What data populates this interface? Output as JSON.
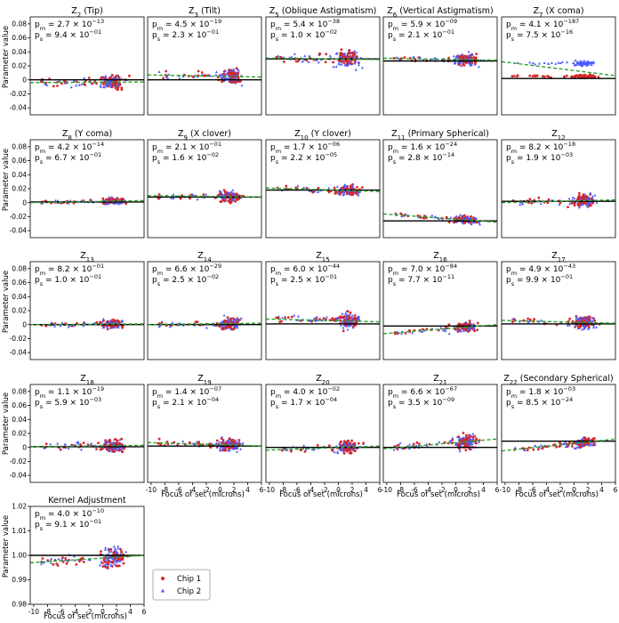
{
  "figure": {
    "ylabel": "Parameter value",
    "xlabel": "Focus of set (microns)",
    "legend": [
      {
        "label": "Chip 1",
        "color": "#d62728",
        "marker": "circle"
      },
      {
        "label": "Chip 2",
        "color": "#4b5cff",
        "marker": "triangle"
      }
    ],
    "colors": {
      "chip1": "#d62728",
      "chip2": "#4b5cff",
      "fit": "#2ca02c",
      "baseline": "#000000"
    },
    "standard_xticks": [
      "-10",
      "-8",
      "-6",
      "-4",
      "-2",
      "0",
      "2",
      "4",
      "6"
    ],
    "standard_yticks": [
      "-0.04",
      "-0.02",
      "0",
      "0.02",
      "0.04",
      "0.06",
      "0.08"
    ],
    "kernel_yticks": [
      "0.98",
      "0.99",
      "1.00",
      "1.01",
      "1.02"
    ]
  },
  "chart_data": [
    {
      "type": "scatter",
      "title_base": "Z",
      "title_sub": "2",
      "title_rest": " (Tip)",
      "pm_mant": "2.7",
      "pm_exp": "−13",
      "ps_mant": "9.4",
      "ps_exp": "−01",
      "xlim": [
        -10.5,
        6
      ],
      "ylim": [
        -0.05,
        0.09
      ],
      "baseline": 0,
      "fit": [
        -0.004,
        -0.003
      ],
      "center": 0.0,
      "spread": 0.01
    },
    {
      "type": "scatter",
      "title_base": "Z",
      "title_sub": "3",
      "title_rest": " (Tilt)",
      "pm_mant": "4.5",
      "pm_exp": "−19",
      "ps_mant": "2.3",
      "ps_exp": "−01",
      "xlim": [
        -10.5,
        6
      ],
      "ylim": [
        -0.05,
        0.09
      ],
      "baseline": 0,
      "fit": [
        0.007,
        0.004
      ],
      "center": 0.002,
      "spread": 0.01
    },
    {
      "type": "scatter",
      "title_base": "Z",
      "title_sub": "5",
      "title_rest": " (Oblique Astigmatism)",
      "pm_mant": "5.4",
      "pm_exp": "−38",
      "ps_mant": "1.0",
      "ps_exp": "−02",
      "xlim": [
        -10.5,
        6
      ],
      "ylim": [
        -0.05,
        0.09
      ],
      "baseline": 0.03,
      "fit": [
        0.031,
        0.029
      ],
      "center": 0.028,
      "spread": 0.012
    },
    {
      "type": "scatter",
      "title_base": "Z",
      "title_sub": "6",
      "title_rest": " (Vertical Astigmatism)",
      "pm_mant": "5.9",
      "pm_exp": "−09",
      "ps_mant": "2.1",
      "ps_exp": "−01",
      "xlim": [
        -10.5,
        6
      ],
      "ylim": [
        -0.05,
        0.09
      ],
      "baseline": 0.027,
      "fit": [
        0.031,
        0.028
      ],
      "center": 0.03,
      "spread": 0.008
    },
    {
      "type": "scatter",
      "title_base": "Z",
      "title_sub": "7",
      "title_rest": " (X coma)",
      "pm_mant": "4.1",
      "pm_exp": "−187",
      "ps_mant": "7.5",
      "ps_exp": "−16",
      "xlim": [
        -10.5,
        6
      ],
      "ylim": [
        -0.05,
        0.09
      ],
      "baseline": 0.002,
      "fit": [
        0.026,
        0.006
      ],
      "center": 0.015,
      "spread": 0.008
    },
    {
      "type": "scatter",
      "title_base": "Z",
      "title_sub": "8",
      "title_rest": " (Y coma)",
      "pm_mant": "4.2",
      "pm_exp": "−14",
      "ps_mant": "6.7",
      "ps_exp": "−01",
      "xlim": [
        -10.5,
        6
      ],
      "ylim": [
        -0.05,
        0.09
      ],
      "baseline": 0.001,
      "fit": [
        0.0,
        0.003
      ],
      "center": 0.001,
      "spread": 0.004
    },
    {
      "type": "scatter",
      "title_base": "Z",
      "title_sub": "9",
      "title_rest": " (X clover)",
      "pm_mant": "2.1",
      "pm_exp": "−01",
      "ps_mant": "1.6",
      "ps_exp": "−02",
      "xlim": [
        -10.5,
        6
      ],
      "ylim": [
        -0.05,
        0.09
      ],
      "baseline": 0.008,
      "fit": [
        0.01,
        0.008
      ],
      "center": 0.007,
      "spread": 0.008
    },
    {
      "type": "scatter",
      "title_base": "Z",
      "title_sub": "10",
      "title_rest": " (Y clover)",
      "pm_mant": "1.7",
      "pm_exp": "−06",
      "ps_mant": "2.2",
      "ps_exp": "−05",
      "xlim": [
        -10.5,
        6
      ],
      "ylim": [
        -0.05,
        0.09
      ],
      "baseline": 0.018,
      "fit": [
        0.021,
        0.016
      ],
      "center": 0.019,
      "spread": 0.007
    },
    {
      "type": "scatter",
      "title_base": "Z",
      "title_sub": "11",
      "title_rest": " (Primary Spherical)",
      "pm_mant": "1.6",
      "pm_exp": "−24",
      "ps_mant": "2.8",
      "ps_exp": "−14",
      "xlim": [
        -10.5,
        6
      ],
      "ylim": [
        -0.05,
        0.09
      ],
      "baseline": -0.026,
      "fit": [
        -0.016,
        -0.028
      ],
      "center": -0.025,
      "spread": 0.005
    },
    {
      "type": "scatter",
      "title_base": "Z",
      "title_sub": "12",
      "title_rest": "",
      "pm_mant": "8.2",
      "pm_exp": "−18",
      "ps_mant": "1.9",
      "ps_exp": "−03",
      "xlim": [
        -10.5,
        6
      ],
      "ylim": [
        -0.05,
        0.09
      ],
      "baseline": 0.002,
      "fit": [
        0.0,
        0.004
      ],
      "center": 0.004,
      "spread": 0.008
    },
    {
      "type": "scatter",
      "title_base": "Z",
      "title_sub": "13",
      "title_rest": "",
      "pm_mant": "8.2",
      "pm_exp": "−01",
      "ps_mant": "1.0",
      "ps_exp": "−01",
      "xlim": [
        -10.5,
        6
      ],
      "ylim": [
        -0.05,
        0.09
      ],
      "baseline": 0.0,
      "fit": [
        0.0,
        0.001
      ],
      "center": 0.001,
      "spread": 0.006
    },
    {
      "type": "scatter",
      "title_base": "Z",
      "title_sub": "14",
      "title_rest": "",
      "pm_mant": "6.6",
      "pm_exp": "−29",
      "ps_mant": "2.5",
      "ps_exp": "−02",
      "xlim": [
        -10.5,
        6
      ],
      "ylim": [
        -0.05,
        0.09
      ],
      "baseline": 0.0,
      "fit": [
        0.0,
        0.002
      ],
      "center": 0.002,
      "spread": 0.008
    },
    {
      "type": "scatter",
      "title_base": "Z",
      "title_sub": "15",
      "title_rest": "",
      "pm_mant": "6.0",
      "pm_exp": "−44",
      "ps_mant": "2.5",
      "ps_exp": "−01",
      "xlim": [
        -10.5,
        6
      ],
      "ylim": [
        -0.05,
        0.09
      ],
      "baseline": 0.001,
      "fit": [
        0.008,
        0.004
      ],
      "center": 0.003,
      "spread": 0.011
    },
    {
      "type": "scatter",
      "title_base": "Z",
      "title_sub": "16",
      "title_rest": "",
      "pm_mant": "7.0",
      "pm_exp": "−84",
      "ps_mant": "7.7",
      "ps_exp": "−11",
      "xlim": [
        -10.5,
        6
      ],
      "ylim": [
        -0.05,
        0.09
      ],
      "baseline": -0.002,
      "fit": [
        -0.013,
        0.0
      ],
      "center": -0.004,
      "spread": 0.006
    },
    {
      "type": "scatter",
      "title_base": "Z",
      "title_sub": "17",
      "title_rest": "",
      "pm_mant": "4.9",
      "pm_exp": "−43",
      "ps_mant": "9.9",
      "ps_exp": "−01",
      "xlim": [
        -10.5,
        6
      ],
      "ylim": [
        -0.05,
        0.09
      ],
      "baseline": 0.001,
      "fit": [
        0.006,
        0.002
      ],
      "center": 0.003,
      "spread": 0.009
    },
    {
      "type": "scatter",
      "title_base": "Z",
      "title_sub": "18",
      "title_rest": "",
      "pm_mant": "1.1",
      "pm_exp": "−19",
      "ps_mant": "5.9",
      "ps_exp": "−03",
      "xlim": [
        -10.5,
        6
      ],
      "ylim": [
        -0.05,
        0.09
      ],
      "baseline": 0.001,
      "fit": [
        0.001,
        0.003
      ],
      "center": 0.003,
      "spread": 0.009
    },
    {
      "type": "scatter",
      "title_base": "Z",
      "title_sub": "19",
      "title_rest": "",
      "pm_mant": "1.4",
      "pm_exp": "−07",
      "ps_mant": "2.1",
      "ps_exp": "−04",
      "xlim": [
        -10.5,
        6
      ],
      "ylim": [
        -0.05,
        0.09
      ],
      "baseline": 0.002,
      "fit": [
        0.007,
        0.002
      ],
      "center": 0.002,
      "spread": 0.008
    },
    {
      "type": "scatter",
      "title_base": "Z",
      "title_sub": "20",
      "title_rest": "",
      "pm_mant": "4.0",
      "pm_exp": "−02",
      "ps_mant": "1.7",
      "ps_exp": "−04",
      "xlim": [
        -10.5,
        6
      ],
      "ylim": [
        -0.05,
        0.09
      ],
      "baseline": 0.0,
      "fit": [
        -0.004,
        0.002
      ],
      "center": 0.001,
      "spread": 0.008
    },
    {
      "type": "scatter",
      "title_base": "Z",
      "title_sub": "21",
      "title_rest": "",
      "pm_mant": "6.6",
      "pm_exp": "−67",
      "ps_mant": "3.5",
      "ps_exp": "−09",
      "xlim": [
        -10.5,
        6
      ],
      "ylim": [
        -0.05,
        0.09
      ],
      "baseline": 0.0,
      "fit": [
        -0.002,
        0.012
      ],
      "center": 0.004,
      "spread": 0.01
    },
    {
      "type": "scatter",
      "title_base": "Z",
      "title_sub": "22",
      "title_rest": " (Secondary Spherical)",
      "pm_mant": "1.8",
      "pm_exp": "−03",
      "ps_mant": "8.5",
      "ps_exp": "−24",
      "xlim": [
        -10.5,
        6
      ],
      "ylim": [
        -0.05,
        0.09
      ],
      "baseline": 0.009,
      "fit": [
        -0.005,
        0.012
      ],
      "center": 0.008,
      "spread": 0.006
    },
    {
      "type": "scatter",
      "title_base": "Kernel Adjustment",
      "title_sub": "",
      "title_rest": "",
      "pm_mant": "4.0",
      "pm_exp": "−10",
      "ps_mant": "9.1",
      "ps_exp": "−01",
      "xlim": [
        -10.5,
        6
      ],
      "ylim": [
        0.98,
        1.02
      ],
      "baseline": 1.0,
      "fit": [
        0.997,
        1.0
      ],
      "center": 0.999,
      "spread": 0.004
    }
  ]
}
